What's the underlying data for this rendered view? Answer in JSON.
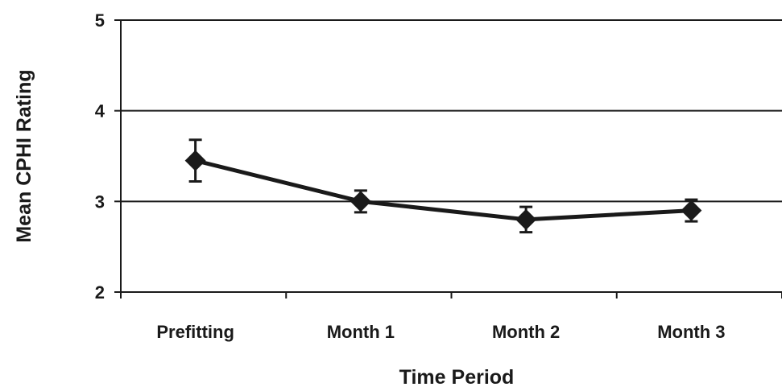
{
  "chart_data": {
    "type": "line",
    "title": "",
    "xlabel": "Time Period",
    "ylabel": "Mean CPHI Rating",
    "categories": [
      "Prefitting",
      "Month 1",
      "Month 2",
      "Month 3"
    ],
    "series": [
      {
        "values": [
          3.45,
          3.0,
          2.8,
          2.9
        ],
        "error": [
          0.23,
          0.12,
          0.14,
          0.12
        ],
        "color": "#1a1a1a",
        "marker": "diamond"
      }
    ],
    "ylim": [
      2,
      5
    ],
    "yticks": [
      2,
      3,
      4,
      5
    ],
    "grid": true
  }
}
